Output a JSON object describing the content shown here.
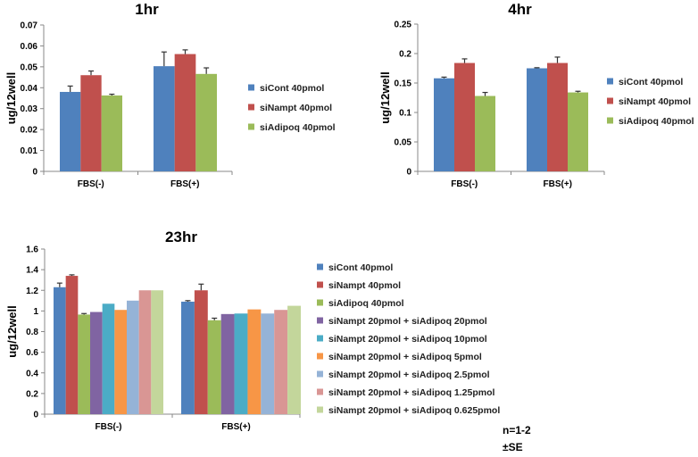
{
  "colors": [
    "#4F81BD",
    "#C0504D",
    "#9BBB59",
    "#8064A2",
    "#4BACC6",
    "#F79646",
    "#95B3D7",
    "#D99694",
    "#C3D69B"
  ],
  "chart_data": [
    {
      "type": "bar",
      "title": "1hr",
      "ylabel": "ug/12well",
      "xlabel": "",
      "categories": [
        "FBS(-)",
        "FBS(+)"
      ],
      "ylim": [
        0,
        0.07
      ],
      "yticks": [
        "0",
        "0.01",
        "0.02",
        "0.03",
        "0.04",
        "0.05",
        "0.06",
        "0.07"
      ],
      "legend_position": "right",
      "grid": false,
      "series": [
        {
          "name": "siCont 40pmol",
          "values": [
            0.038,
            0.0503
          ],
          "errors": [
            0.0028,
            0.0068
          ]
        },
        {
          "name": "siNampt 40pmol",
          "values": [
            0.046,
            0.0561
          ],
          "errors": [
            0.002,
            0.002
          ]
        },
        {
          "name": "siAdipoq 40pmol",
          "values": [
            0.0363,
            0.0466
          ],
          "errors": [
            0.0006,
            0.0029
          ]
        }
      ]
    },
    {
      "type": "bar",
      "title": "4hr",
      "ylabel": "ug/12well",
      "xlabel": "",
      "categories": [
        "FBS(-)",
        "FBS(+)"
      ],
      "ylim": [
        0,
        0.25
      ],
      "yticks": [
        "0",
        "0.05",
        "0.1",
        "0.15",
        "0.2",
        "0.25"
      ],
      "legend_position": "right",
      "grid": false,
      "series": [
        {
          "name": "siCont 40pmol",
          "values": [
            0.158,
            0.175
          ],
          "errors": [
            0.002,
            0.001
          ]
        },
        {
          "name": "siNampt 40pmol",
          "values": [
            0.184,
            0.184
          ],
          "errors": [
            0.007,
            0.01
          ]
        },
        {
          "name": "siAdipoq 40pmol",
          "values": [
            0.128,
            0.134
          ],
          "errors": [
            0.006,
            0.002
          ]
        }
      ]
    },
    {
      "type": "bar",
      "title": "23hr",
      "ylabel": "ug/12well",
      "xlabel": "",
      "categories": [
        "FBS(-)",
        "FBS(+)"
      ],
      "ylim": [
        0,
        1.6
      ],
      "yticks": [
        "0",
        "0.2",
        "0.4",
        "0.6",
        "0.8",
        "1",
        "1.2",
        "1.4",
        "1.6"
      ],
      "legend_position": "right",
      "grid": false,
      "series": [
        {
          "name": "siCont 40pmol",
          "values": [
            1.23,
            1.09
          ],
          "errors": [
            0.04,
            0.01
          ]
        },
        {
          "name": "siNampt 40pmol",
          "values": [
            1.34,
            1.2
          ],
          "errors": [
            0.01,
            0.06
          ]
        },
        {
          "name": "siAdipoq 40pmol",
          "values": [
            0.965,
            0.91
          ],
          "errors": [
            0.01,
            0.02
          ]
        },
        {
          "name": "siNampt 20pmol + siAdipoq 20pmol",
          "values": [
            0.99,
            0.97
          ]
        },
        {
          "name": "siNampt 20pmol + siAdipoq 10pmol",
          "values": [
            1.07,
            0.975
          ]
        },
        {
          "name": "siNampt 20pmol + siAdipoq 5pmol",
          "values": [
            1.01,
            1.015
          ]
        },
        {
          "name": "siNampt 20pmol + siAdipoq 2.5pmol",
          "values": [
            1.1,
            0.975
          ]
        },
        {
          "name": "siNampt 20pmol + siAdipoq 1.25pmol",
          "values": [
            1.2,
            1.01
          ]
        },
        {
          "name": "siNampt 20pmol + siAdipoq 0.625pmol",
          "values": [
            1.2,
            1.05
          ]
        }
      ]
    }
  ],
  "notes": {
    "n": "n=1-2",
    "se": "±SE"
  }
}
